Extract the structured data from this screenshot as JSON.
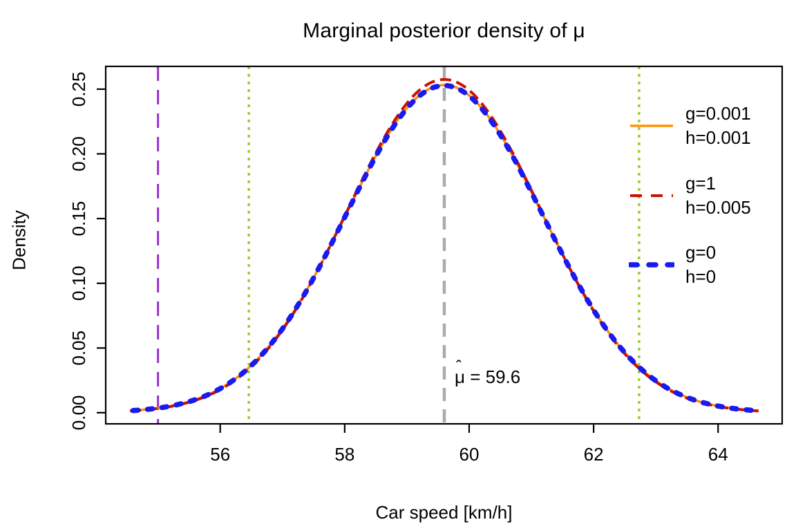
{
  "chart_data": {
    "type": "line",
    "title": "Marginal posterior density of μ",
    "xlabel": "Car speed [km/h]",
    "ylabel": "Density",
    "grid": false,
    "x_axis": {
      "range": [
        54.16,
        65.03
      ],
      "ticks": [
        56,
        58,
        60,
        62,
        64
      ],
      "tick_labels": [
        "56",
        "58",
        "60",
        "62",
        "64"
      ]
    },
    "y_axis": {
      "range": [
        -0.0086,
        0.2676
      ],
      "ticks": [
        0.0,
        0.05,
        0.1,
        0.15,
        0.2,
        0.25
      ],
      "tick_labels": [
        "0.00",
        "0.05",
        "0.10",
        "0.15",
        "0.20",
        "0.25"
      ]
    },
    "series": [
      {
        "name": "g=0.001 h=0.001",
        "color": "#FF9100",
        "style": "solid",
        "width": 3.5,
        "shape": "gaussian",
        "mean": 59.6,
        "sd": 1.576,
        "peak_density": 0.2532,
        "x_range": [
          54.55,
          64.65
        ]
      },
      {
        "name": "g=1 h=0.005",
        "color": "#CC1100",
        "style": "dashed",
        "width": 4,
        "shape": "gaussian",
        "mean": 59.6,
        "sd": 1.558,
        "peak_density": 0.2575,
        "x_range": [
          54.55,
          64.65
        ]
      },
      {
        "name": "g=0 h=0",
        "color": "#1A1AEE",
        "style": "dashed-thick",
        "width": 7.5,
        "shape": "gaussian",
        "mean": 59.6,
        "sd": 1.576,
        "peak_density": 0.2528,
        "x_range": [
          54.6,
          64.6
        ]
      }
    ],
    "reference_lines": [
      {
        "id": "vline-purple",
        "x": 55.0,
        "color": "#9932CC",
        "style": "long-dash",
        "width": 3
      },
      {
        "id": "vline-green-left",
        "x": 56.46,
        "color": "#9ACD32",
        "style": "dotted",
        "width": 3.5
      },
      {
        "id": "vline-green-right",
        "x": 62.73,
        "color": "#9ACD32",
        "style": "dotted",
        "width": 3.5
      },
      {
        "id": "vline-gray-mu-hat",
        "x": 59.6,
        "color": "#ABABAB",
        "style": "gray-dash",
        "width": 4.5
      }
    ],
    "annotation": {
      "text": "μ̂ = 59.6",
      "symbol": "μ",
      "hat": "ˆ",
      "rest": " = 59.6",
      "x": 59.8,
      "y": 0.028
    },
    "legend": {
      "position": "right-top",
      "entries": [
        {
          "lines": [
            "g=0.001",
            "h=0.001"
          ],
          "color": "#FF9100",
          "style": "solid"
        },
        {
          "lines": [
            "g=1",
            "h=0.005"
          ],
          "color": "#CC1100",
          "style": "dashed"
        },
        {
          "lines": [
            "g=0",
            "h=0"
          ],
          "color": "#1A1AEE",
          "style": "dashed-thick"
        }
      ]
    }
  }
}
